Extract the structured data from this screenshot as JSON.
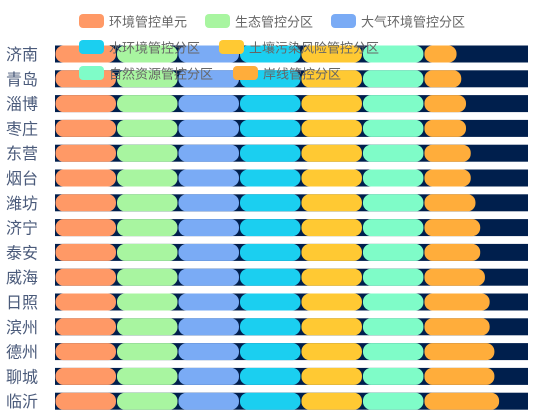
{
  "chart_data": {
    "type": "bar",
    "stacked": true,
    "orientation": "horizontal",
    "legend_position": "top",
    "grid": false,
    "background_track_color": "#001f4d",
    "xlim": [
      0,
      100
    ],
    "categories": [
      "济南",
      "青岛",
      "淄博",
      "枣庄",
      "东营",
      "烟台",
      "潍坊",
      "济宁",
      "泰安",
      "威海",
      "日照",
      "滨州",
      "德州",
      "聊城",
      "临沂"
    ],
    "series": [
      {
        "name": "环境管控单元",
        "color": "#ff9966",
        "values": [
          13,
          13,
          13,
          13,
          13,
          13,
          13,
          13,
          13,
          13,
          13,
          13,
          13,
          13,
          13
        ]
      },
      {
        "name": "生态管控分区",
        "color": "#a8f5a0",
        "values": [
          13,
          13,
          13,
          13,
          13,
          13,
          13,
          13,
          13,
          13,
          13,
          13,
          13,
          13,
          13
        ]
      },
      {
        "name": "大气环境管控分区",
        "color": "#7aabf5",
        "values": [
          13,
          13,
          13,
          13,
          13,
          13,
          13,
          13,
          13,
          13,
          13,
          13,
          13,
          13,
          13
        ]
      },
      {
        "name": "水环境管控分区",
        "color": "#1bcff0",
        "values": [
          13,
          13,
          13,
          13,
          13,
          13,
          13,
          13,
          13,
          13,
          13,
          13,
          13,
          13,
          13
        ]
      },
      {
        "name": "土壤污染风险管控分区",
        "color": "#ffc933",
        "values": [
          13,
          13,
          13,
          13,
          13,
          13,
          13,
          13,
          13,
          13,
          13,
          13,
          13,
          13,
          13
        ]
      },
      {
        "name": "自然资源管控分区",
        "color": "#7ffcc8",
        "values": [
          13,
          13,
          13,
          13,
          13,
          13,
          13,
          13,
          13,
          13,
          13,
          13,
          13,
          13,
          13
        ]
      },
      {
        "name": "岸线管控分区",
        "color": "#ffad3b",
        "values": [
          7,
          8,
          9,
          9,
          10,
          10,
          11,
          12,
          12,
          13,
          14,
          14,
          15,
          15,
          16
        ]
      }
    ]
  }
}
